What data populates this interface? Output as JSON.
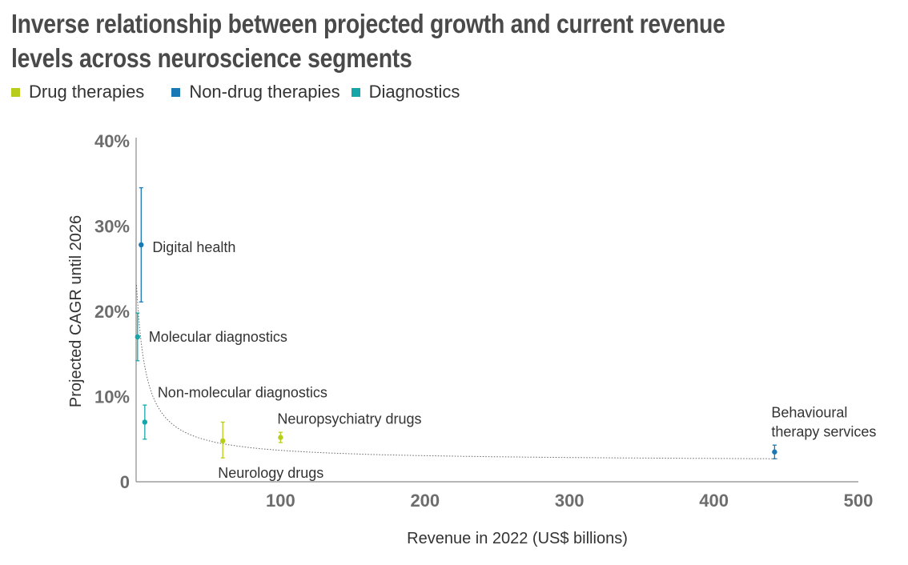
{
  "title": "Inverse relationship between projected growth and current revenue levels across neuroscience segments",
  "legend": [
    {
      "label": "Drug therapies",
      "color": "#b8cd1b"
    },
    {
      "label": "Non-drug therapies",
      "color": "#1a78b4"
    },
    {
      "label": "Diagnostics",
      "color": "#17a6a8"
    }
  ],
  "chart_data": {
    "type": "scatter",
    "xlabel": "Revenue in 2022 (US$ billions)",
    "ylabel": "Projected CAGR until 2026",
    "xlim": [
      0,
      500
    ],
    "ylim": [
      0,
      40
    ],
    "x_ticks": [
      {
        "value": 100,
        "label": "100"
      },
      {
        "value": 200,
        "label": "200"
      },
      {
        "value": 300,
        "label": "300"
      },
      {
        "value": 400,
        "label": "400"
      },
      {
        "value": 500,
        "label": "500"
      }
    ],
    "y_ticks": [
      {
        "value": 0,
        "label": "0"
      },
      {
        "value": 10,
        "label": "10%"
      },
      {
        "value": 20,
        "label": "20%"
      },
      {
        "value": 30,
        "label": "30%"
      },
      {
        "value": 40,
        "label": "40%"
      }
    ],
    "trendline": {
      "style": "dotted",
      "type": "inverse"
    },
    "points": [
      {
        "label": "Digital health",
        "category": "Non-drug therapies",
        "x": 3.5,
        "y": 27.8,
        "y_low": 21.1,
        "y_high": 34.5
      },
      {
        "label": "Molecular diagnostics",
        "category": "Diagnostics",
        "x": 1,
        "y": 17,
        "y_low": 14.2,
        "y_high": 19.8
      },
      {
        "label": "Non-molecular diagnostics",
        "category": "Diagnostics",
        "x": 6,
        "y": 7,
        "y_low": 5,
        "y_high": 9
      },
      {
        "label": "Neurology drugs",
        "category": "Drug therapies",
        "x": 60,
        "y": 4.8,
        "y_low": 2.8,
        "y_high": 7
      },
      {
        "label": "Neuropsychiatry drugs",
        "category": "Drug therapies",
        "x": 100,
        "y": 5.2,
        "y_low": 4.6,
        "y_high": 5.8
      },
      {
        "label": "Behavioural therapy services",
        "category": "Non-drug therapies",
        "x": 442,
        "y": 3.5,
        "y_low": 2.7,
        "y_high": 4.3
      }
    ]
  }
}
